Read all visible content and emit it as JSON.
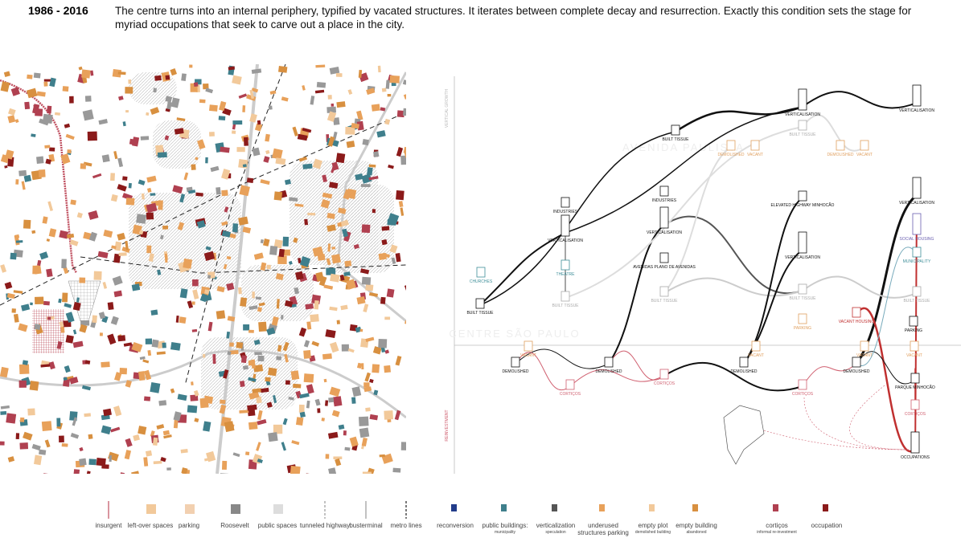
{
  "header": {
    "period": "1986 - 2016",
    "text": "The centre turns into an internal periphery, typified by vacated structures. It iterates between complete decay and resurrection. Exactly this condition sets the stage for myriad occupations that seek to carve out a place in the city."
  },
  "diagram": {
    "axis_top": "VERTICAL GROWTH",
    "axis_bottom": "REINVESTMENT",
    "background_labels": [
      "CENTRE SÃO PAULO",
      "AVENIDA PAULISTA"
    ],
    "nodes": [
      {
        "label": "BUILT TISSUE",
        "color": "#111111"
      },
      {
        "label": "CHURCHES",
        "color": "#3f8f99"
      },
      {
        "label": "INDUSTRIES",
        "color": "#111111"
      },
      {
        "label": "VERTICALISATION",
        "color": "#111111"
      },
      {
        "label": "THEATRE",
        "color": "#3f8f99"
      },
      {
        "label": "BUILT TISSUE",
        "color": "#aaaaaa"
      },
      {
        "label": "DEMOLISHED",
        "color": "#111111"
      },
      {
        "label": "VACANT",
        "color": "#e0a060"
      },
      {
        "label": "CORTIÇOS",
        "color": "#d06070"
      },
      {
        "label": "INDUSTRIES",
        "color": "#111111"
      },
      {
        "label": "VERTICALISATION",
        "color": "#111111"
      },
      {
        "label": "AVENIDAS PLANO DE AVENIDAS",
        "color": "#111111"
      },
      {
        "label": "BUILT TISSUE",
        "color": "#aaaaaa"
      },
      {
        "label": "DEMOLISHED",
        "color": "#111111"
      },
      {
        "label": "CORTIÇOS",
        "color": "#d06070"
      },
      {
        "label": "BUILT TISSUE",
        "color": "#111111"
      },
      {
        "label": "VERTICALISATION",
        "color": "#111111"
      },
      {
        "label": "BUILT TISSUE",
        "color": "#aaaaaa"
      },
      {
        "label": "DEMOLISHED",
        "color": "#e0a060"
      },
      {
        "label": "VACANT",
        "color": "#e0a060"
      },
      {
        "label": "ELEVATED HIGHWAY MINHOCÃO",
        "color": "#111111"
      },
      {
        "label": "VERTICALISATION",
        "color": "#111111"
      },
      {
        "label": "BUILT TISSUE",
        "color": "#aaaaaa"
      },
      {
        "label": "PARKING",
        "color": "#e0a060"
      },
      {
        "label": "DEMOLISHED",
        "color": "#111111"
      },
      {
        "label": "VACANT",
        "color": "#e0a060"
      },
      {
        "label": "CORTIÇOS",
        "color": "#d06070"
      },
      {
        "label": "VERTICALISATION",
        "color": "#111111"
      },
      {
        "label": "DEMOLISHED",
        "color": "#e0a060"
      },
      {
        "label": "VACANT",
        "color": "#e0a060"
      },
      {
        "label": "VERTICALISATION",
        "color": "#111111"
      },
      {
        "label": "SOCIAL HOUSING",
        "color": "#6a5fb0"
      },
      {
        "label": "MUNICIPALITY",
        "color": "#3f8f99"
      },
      {
        "label": "BUILT TISSUE",
        "color": "#aaaaaa"
      },
      {
        "label": "VACANT HOUSING",
        "color": "#c03030"
      },
      {
        "label": "PARKING",
        "color": "#111111"
      },
      {
        "label": "DEMOLISHED",
        "color": "#111111"
      },
      {
        "label": "VACANT",
        "color": "#e0a060"
      },
      {
        "label": "VACANT",
        "color": "#e0a060"
      },
      {
        "label": "PARQUE MINHOCÃO",
        "color": "#111111"
      },
      {
        "label": "CORTIÇOS",
        "color": "#d06070"
      },
      {
        "label": "OCCUPATIONS",
        "color": "#111111"
      }
    ]
  },
  "legend": [
    {
      "label": "insurgent"
    },
    {
      "label": "left-over spaces"
    },
    {
      "label": "parking"
    },
    {
      "label": "Roosevelt"
    },
    {
      "label": "public spaces"
    },
    {
      "label": "tunneled highway"
    },
    {
      "label": "busterminal"
    },
    {
      "label": "metro lines"
    },
    {
      "label": "reconversion"
    },
    {
      "label": "public buildings:",
      "note": "municipality"
    },
    {
      "label": "verticalization",
      "note": "speculation"
    },
    {
      "label": "underused structures parking"
    },
    {
      "label": "empty plot",
      "note": "demolished building"
    },
    {
      "label": "empty building",
      "note": "abandoned"
    },
    {
      "label": "cortiços",
      "note": "informal re-investment"
    },
    {
      "label": "occupation"
    }
  ]
}
